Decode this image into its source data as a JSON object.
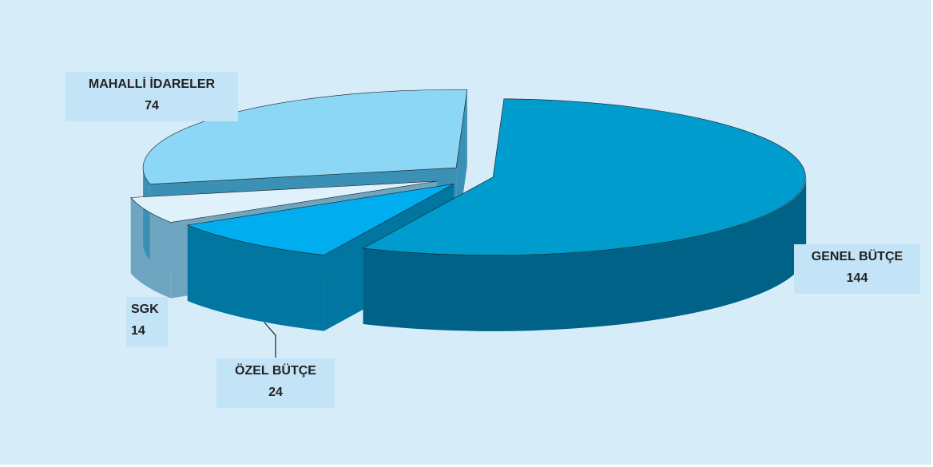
{
  "chart_data": {
    "type": "pie",
    "style": "3d-exploded",
    "slices": [
      {
        "label": "GENEL BÜTÇE",
        "value": 144,
        "color": "#009ccd",
        "side": "#006286"
      },
      {
        "label": "ÖZEL BÜTÇE",
        "value": 24,
        "color": "#00adee",
        "side": "#0076a0"
      },
      {
        "label": "SGK",
        "value": 14,
        "color": "#dff2fc",
        "side": "#6ea6c2"
      },
      {
        "label": "MAHALLİ İDARELER",
        "value": 74,
        "color": "#8cd7f6",
        "side": "#3a90b5"
      }
    ],
    "background": "#d7ecf9",
    "label_background": "#c3e3f7"
  }
}
